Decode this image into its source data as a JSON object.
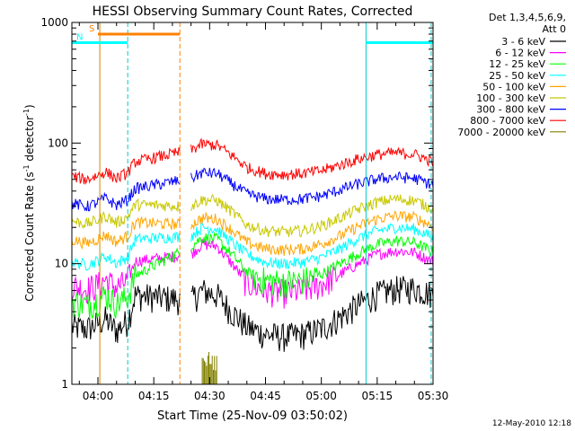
{
  "chart_data": {
    "type": "line",
    "title": "HESSI Observing Summary Count Rates, Corrected",
    "xlabel": "Start Time (25-Nov-09 03:50:02)",
    "ylabel_main": "Corrected Count Rate (s",
    "ylabel_sup1": "-1",
    "ylabel_mid": " detector",
    "ylabel_sup2": "-1",
    "ylabel_end": ")",
    "yscale": "log",
    "ylim": [
      1,
      1000
    ],
    "xlim_minutes": [
      -7,
      90
    ],
    "x_tick_minutes": [
      0,
      15,
      30,
      45,
      60,
      75,
      90
    ],
    "x_tick_labels": [
      "04:00",
      "04:15",
      "04:30",
      "04:45",
      "05:00",
      "05:15",
      "05:30"
    ],
    "y_ticks": [
      1,
      10,
      100,
      1000
    ],
    "y_tick_labels": [
      "1",
      "10",
      "100",
      "1000"
    ],
    "legend_header": [
      "Det 1,3,4,5,6,9,",
      "Att 0"
    ],
    "legend_placement": "right of plot",
    "footer_date": "12-May-2010 12:18",
    "data_gap_minutes": [
      22,
      25
    ],
    "series": [
      {
        "name": "3 - 6 keV",
        "color": "#000000",
        "points": [
          [
            -7,
            3
          ],
          [
            -3,
            2.9
          ],
          [
            0,
            3.2
          ],
          [
            2,
            3.5
          ],
          [
            5,
            2.8
          ],
          [
            8,
            3.4
          ],
          [
            10,
            5.5
          ],
          [
            25,
            5
          ],
          [
            28,
            6
          ],
          [
            32,
            5.5
          ],
          [
            36,
            4
          ],
          [
            40,
            3
          ],
          [
            45,
            2.6
          ],
          [
            50,
            2.5
          ],
          [
            55,
            2.6
          ],
          [
            60,
            2.9
          ],
          [
            65,
            3.6
          ],
          [
            70,
            4.6
          ],
          [
            75,
            5.6
          ],
          [
            80,
            6.2
          ],
          [
            85,
            6.3
          ],
          [
            90,
            5.6
          ]
        ]
      },
      {
        "name": "6 - 12 keV",
        "color": "#ff00ff",
        "points": [
          [
            -7,
            6.6
          ],
          [
            -3,
            6.2
          ],
          [
            0,
            6.7
          ],
          [
            2,
            7.4
          ],
          [
            5,
            6.4
          ],
          [
            8,
            7.2
          ],
          [
            10,
            10.5
          ],
          [
            25,
            12
          ],
          [
            28,
            14.5
          ],
          [
            32,
            14
          ],
          [
            36,
            10
          ],
          [
            40,
            7
          ],
          [
            45,
            6
          ],
          [
            50,
            5.8
          ],
          [
            55,
            6
          ],
          [
            60,
            6.8
          ],
          [
            65,
            8.2
          ],
          [
            70,
            10
          ],
          [
            75,
            12
          ],
          [
            80,
            12.8
          ],
          [
            85,
            12.4
          ],
          [
            90,
            10.4
          ]
        ]
      },
      {
        "name": "12 - 25 keV",
        "color": "#00ff00",
        "points": [
          [
            -7,
            4.9
          ],
          [
            -3,
            4.6
          ],
          [
            0,
            5
          ],
          [
            2,
            5.6
          ],
          [
            5,
            4.7
          ],
          [
            8,
            5.3
          ],
          [
            10,
            8
          ],
          [
            25,
            14
          ],
          [
            28,
            16.5
          ],
          [
            32,
            16
          ],
          [
            36,
            12
          ],
          [
            40,
            8.5
          ],
          [
            45,
            7.3
          ],
          [
            50,
            7
          ],
          [
            55,
            7.3
          ],
          [
            60,
            8.2
          ],
          [
            65,
            10
          ],
          [
            70,
            12.2
          ],
          [
            75,
            14.5
          ],
          [
            80,
            15.5
          ],
          [
            85,
            15
          ],
          [
            90,
            12.5
          ]
        ]
      },
      {
        "name": "25 - 50 keV",
        "color": "#00ffff",
        "points": [
          [
            -7,
            10.4
          ],
          [
            -3,
            9.8
          ],
          [
            0,
            10.6
          ],
          [
            2,
            11.6
          ],
          [
            5,
            10.1
          ],
          [
            8,
            11.4
          ],
          [
            10,
            16
          ],
          [
            25,
            17
          ],
          [
            28,
            20
          ],
          [
            32,
            19.5
          ],
          [
            36,
            15
          ],
          [
            40,
            12
          ],
          [
            45,
            10.3
          ],
          [
            50,
            10
          ],
          [
            55,
            10.3
          ],
          [
            60,
            11.3
          ],
          [
            65,
            13.3
          ],
          [
            70,
            16.3
          ],
          [
            75,
            18.8
          ],
          [
            80,
            20
          ],
          [
            85,
            19.5
          ],
          [
            90,
            16.5
          ]
        ]
      },
      {
        "name": "50 - 100 keV",
        "color": "#ffa500",
        "points": [
          [
            -7,
            15.8
          ],
          [
            -3,
            14.8
          ],
          [
            0,
            16
          ],
          [
            2,
            17.4
          ],
          [
            5,
            15.2
          ],
          [
            8,
            17
          ],
          [
            10,
            22
          ],
          [
            25,
            21
          ],
          [
            28,
            24
          ],
          [
            32,
            23.5
          ],
          [
            36,
            19
          ],
          [
            40,
            15
          ],
          [
            45,
            13.3
          ],
          [
            50,
            13
          ],
          [
            55,
            13.3
          ],
          [
            60,
            14.6
          ],
          [
            65,
            17
          ],
          [
            70,
            20.5
          ],
          [
            75,
            23.5
          ],
          [
            80,
            25
          ],
          [
            85,
            24.3
          ],
          [
            90,
            20.5
          ]
        ]
      },
      {
        "name": "100 - 300 keV",
        "color": "#c8c800",
        "points": [
          [
            -7,
            22.7
          ],
          [
            -3,
            21.4
          ],
          [
            0,
            23
          ],
          [
            2,
            25
          ],
          [
            5,
            21.9
          ],
          [
            8,
            24.5
          ],
          [
            10,
            31
          ],
          [
            25,
            30
          ],
          [
            28,
            34
          ],
          [
            32,
            33.5
          ],
          [
            36,
            27
          ],
          [
            40,
            21
          ],
          [
            45,
            18.8
          ],
          [
            50,
            18.3
          ],
          [
            55,
            18.8
          ],
          [
            60,
            20.6
          ],
          [
            65,
            24
          ],
          [
            70,
            28.5
          ],
          [
            75,
            32.5
          ],
          [
            80,
            34.5
          ],
          [
            85,
            33.5
          ],
          [
            90,
            28.5
          ]
        ]
      },
      {
        "name": "300 - 800 keV",
        "color": "#0000ff",
        "points": [
          [
            -7,
            31.7
          ],
          [
            -3,
            29.8
          ],
          [
            0,
            32.3
          ],
          [
            2,
            35
          ],
          [
            5,
            30.7
          ],
          [
            8,
            34
          ],
          [
            10,
            42
          ],
          [
            25,
            51
          ],
          [
            28,
            57
          ],
          [
            32,
            56
          ],
          [
            36,
            46
          ],
          [
            40,
            38
          ],
          [
            45,
            34.5
          ],
          [
            50,
            34
          ],
          [
            55,
            34.5
          ],
          [
            60,
            36.5
          ],
          [
            65,
            41
          ],
          [
            70,
            46
          ],
          [
            75,
            50.5
          ],
          [
            80,
            52.5
          ],
          [
            85,
            51
          ],
          [
            90,
            45
          ]
        ]
      },
      {
        "name": "800 - 7000 keV",
        "color": "#ff0000",
        "points": [
          [
            -7,
            53
          ],
          [
            -3,
            50
          ],
          [
            0,
            54
          ],
          [
            2,
            58
          ],
          [
            5,
            51
          ],
          [
            8,
            57
          ],
          [
            10,
            70
          ],
          [
            25,
            88
          ],
          [
            28,
            98
          ],
          [
            32,
            96
          ],
          [
            36,
            79
          ],
          [
            40,
            63
          ],
          [
            45,
            56
          ],
          [
            50,
            55
          ],
          [
            55,
            56
          ],
          [
            60,
            59
          ],
          [
            65,
            66
          ],
          [
            70,
            74
          ],
          [
            75,
            80.5
          ],
          [
            80,
            83
          ],
          [
            85,
            81
          ],
          [
            90,
            70
          ]
        ]
      },
      {
        "name": "7000 - 20000 keV",
        "color": "#808000",
        "points": [
          [
            28,
            1.4
          ],
          [
            30,
            1.6
          ],
          [
            32,
            1.45
          ]
        ]
      }
    ],
    "markers": [
      {
        "label": "S",
        "color": "#ff8000",
        "bar_minutes": [
          0,
          22
        ],
        "y": 800
      },
      {
        "label": "N",
        "color": "#00ffff",
        "bar_minutes": [
          -7,
          8
        ],
        "y": 680
      },
      {
        "label": "",
        "color": "#00ffff",
        "bar_minutes": [
          72,
          90
        ],
        "y": 680
      }
    ]
  }
}
